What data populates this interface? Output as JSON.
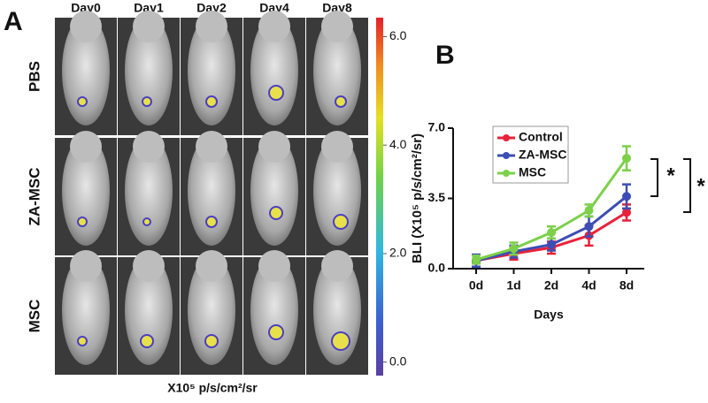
{
  "panel_a": {
    "label": "A",
    "columns": [
      "Day0",
      "Day1",
      "Day2",
      "Day4",
      "Day8"
    ],
    "rows": [
      "PBS",
      "ZA-MSC",
      "MSC"
    ],
    "colorbar": {
      "lim": [
        -0.25,
        6.35
      ],
      "ticks": [
        {
          "value": 0,
          "label": "0.0"
        },
        {
          "value": 2,
          "label": "2.0"
        },
        {
          "value": 4,
          "label": "4.0"
        },
        {
          "value": 6,
          "label": "6.0"
        }
      ],
      "label": "X10⁵ p/s/cm²/sr"
    }
  },
  "chart_data": {
    "type": "line",
    "panel_label": "B",
    "categories": [
      "0d",
      "1d",
      "2d",
      "4d",
      "8d"
    ],
    "series": [
      {
        "name": "Control",
        "color": "#e8213a",
        "values": [
          0.4,
          0.75,
          1.05,
          1.65,
          2.8
        ],
        "errors": [
          0.3,
          0.3,
          0.3,
          0.5,
          0.4
        ]
      },
      {
        "name": "ZA-MSC",
        "color": "#3d4db5",
        "values": [
          0.4,
          0.85,
          1.2,
          2.1,
          3.6
        ],
        "errors": [
          0.3,
          0.3,
          0.3,
          0.5,
          0.6
        ]
      },
      {
        "name": "MSC",
        "color": "#7cd04a",
        "values": [
          0.45,
          1.0,
          1.8,
          2.9,
          5.5
        ],
        "errors": [
          0.2,
          0.3,
          0.3,
          0.3,
          0.6
        ]
      }
    ],
    "ylim": [
      0,
      7
    ],
    "yticks": [
      {
        "value": 0,
        "label": "0.0"
      },
      {
        "value": 3.5,
        "label": "3.5"
      },
      {
        "value": 7,
        "label": "7.0"
      }
    ],
    "ylabel": "BLI (X10⁵ p/s/cm²/sr)",
    "xlabel": "Days",
    "annotations": [
      "*",
      "*"
    ]
  }
}
